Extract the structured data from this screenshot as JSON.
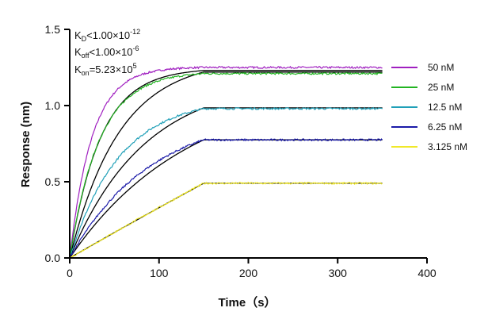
{
  "chart_data": {
    "type": "line",
    "title": "",
    "xlabel": "Time（s）",
    "ylabel": "Response (nm)",
    "xlim": [
      0,
      400
    ],
    "ylim": [
      0,
      1.5
    ],
    "x_ticks": [
      0,
      100,
      200,
      300,
      400
    ],
    "y_ticks": [
      0.0,
      0.5,
      1.0,
      1.5
    ],
    "x_tick_labels": [
      "0",
      "100",
      "200",
      "300",
      "400"
    ],
    "y_tick_labels": [
      "0.0",
      "0.5",
      "1.0",
      "1.5"
    ],
    "grid": false,
    "legend_position": "right",
    "association_end_time": 150,
    "end_time": 350,
    "annotations": {
      "kd": {
        "symbol": "K",
        "sub": "D",
        "text": "<1.00×10",
        "sup": "-12"
      },
      "koff": {
        "symbol": "K",
        "sub": "off",
        "text": "<1.00×10",
        "sup": "-6"
      },
      "kon": {
        "symbol": "K",
        "sub": "on",
        "text": "=5.23×10",
        "sup": "5"
      }
    },
    "series": [
      {
        "name": "50 nM",
        "color": "#a020c0",
        "plateau": 1.25,
        "k_obs": 0.04
      },
      {
        "name": "25 nM",
        "color": "#22b422",
        "plateau": 1.21,
        "k_obs": 0.03
      },
      {
        "name": "12.5 nM",
        "color": "#20a0b8",
        "plateau": 0.98,
        "k_obs": 0.018
      },
      {
        "name": "6.25 nM",
        "color": "#1a1aa8",
        "plateau": 0.775,
        "k_obs": 0.011
      },
      {
        "name": "3.125 nM",
        "color": "#f0e82a",
        "plateau": 0.49,
        "k_obs": 0.0005
      }
    ],
    "fit_series": [
      {
        "plateau": 1.23,
        "k_obs": 0.029
      },
      {
        "plateau": 1.22,
        "k_obs": 0.018
      },
      {
        "plateau": 0.985,
        "k_obs": 0.012
      },
      {
        "plateau": 0.775,
        "k_obs": 0.0075
      },
      {
        "plateau": 0.49,
        "k_obs": 0.0004
      }
    ]
  }
}
